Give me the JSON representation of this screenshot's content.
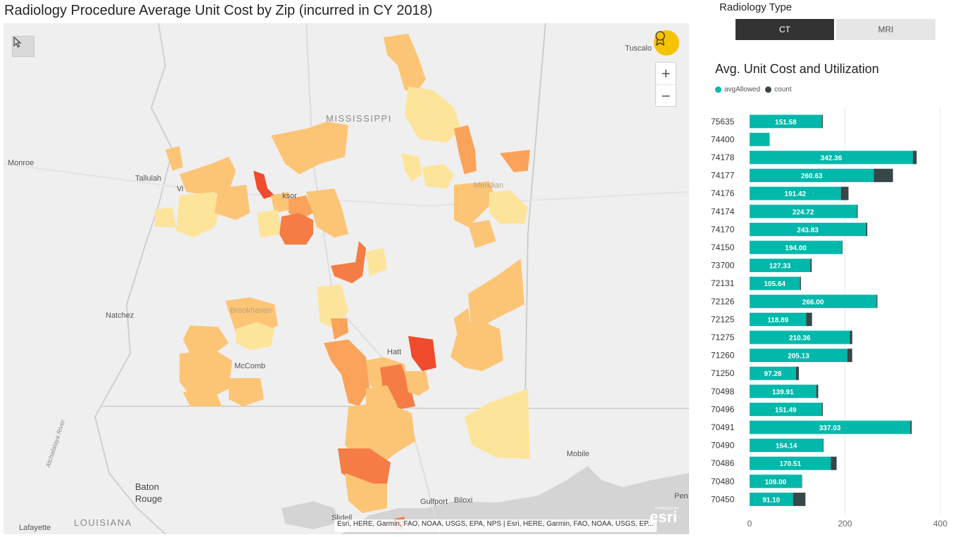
{
  "title": "Radiology Procedure Average Unit Cost by Zip (incurred in CY 2018)",
  "slicer": {
    "title": "Radiology Type",
    "options": [
      "CT",
      "MRI"
    ],
    "selected": "CT"
  },
  "map": {
    "labels": {
      "mississippi": "MISSISSIPPI",
      "louisiana": "LOUISIANA",
      "monroe": "Monroe",
      "tallulah": "Tallulah",
      "vicksburg": "Vi",
      "jackson": "ksor",
      "natchez": "Natchez",
      "brookhaven": "Brookhaven",
      "mccomb": "McComb",
      "hattiesburg": "Hatt",
      "baton_rouge_1": "Baton",
      "baton_rouge_2": "Rouge",
      "lafayette": "Lafayette",
      "gulfport": "Gulfport",
      "biloxi": "Biloxi",
      "slidell": "Slidell",
      "mobile": "Mobile",
      "tuscaloosa": "Tuscalo",
      "meridian": "Meridian",
      "pen": "Pen",
      "atchafalaya": "Atchafalaya River"
    },
    "attribution": "Esri, HERE, Garmin, FAO, NOAA, USGS, EPA, NPS | Esri, HERE, Garmin, FAO, NOAA, USGS, EP...",
    "logo": "esri",
    "logo_small": "POWERED BY",
    "zoom_in": "+",
    "zoom_out": "−",
    "colors": {
      "light": "#fde49b",
      "mid": "#fcc576",
      "orange": "#fba35a",
      "dark_orange": "#f57c45",
      "red": "#ef4b2c",
      "water": "#d4d4d4"
    }
  },
  "chart_data": {
    "type": "bar",
    "orientation": "horizontal",
    "stacked": true,
    "title": "Avg. Unit Cost and Utilization",
    "categories": [
      "75635",
      "74400",
      "74178",
      "74177",
      "74176",
      "74174",
      "74170",
      "74150",
      "73700",
      "72131",
      "72126",
      "72125",
      "71275",
      "71260",
      "71250",
      "70498",
      "70496",
      "70491",
      "70490",
      "70486",
      "70480",
      "70450"
    ],
    "series": [
      {
        "name": "avgAllowed",
        "color": "#01b8aa",
        "values": [
          151.58,
          42,
          342.36,
          260.63,
          191.42,
          224.72,
          243.83,
          194.0,
          127.33,
          105.64,
          266.0,
          118.89,
          210.36,
          205.13,
          97.28,
          139.91,
          151.49,
          337.03,
          154.14,
          170.51,
          109.0,
          91.1
        ],
        "labels": [
          "151.58",
          "",
          "342.36",
          "260.63",
          "191.42",
          "224.72",
          "243.83",
          "194.00",
          "127.33",
          "105.64",
          "266.00",
          "118.89",
          "210.36",
          "205.13",
          "97.28",
          "139.91",
          "151.49",
          "337.03",
          "154.14",
          "170.51",
          "109.00",
          "91.10"
        ]
      },
      {
        "name": "count",
        "color": "#374649",
        "values": [
          2,
          0,
          8,
          40,
          16,
          2,
          3,
          1,
          3,
          2,
          2,
          12,
          5,
          10,
          6,
          4,
          2,
          3,
          1,
          12,
          1,
          26
        ]
      }
    ],
    "xlim": [
      0,
      400
    ],
    "xticks": [
      0,
      200,
      400
    ]
  }
}
